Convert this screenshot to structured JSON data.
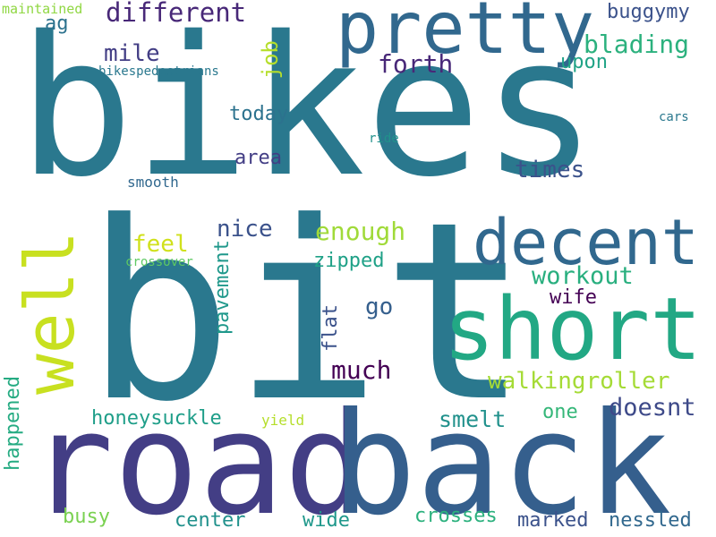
{
  "words": [
    {
      "text": "bikes",
      "color": "#2a788e"
    },
    {
      "text": "bit",
      "color": "#2a788e"
    },
    {
      "text": "road",
      "color": "#433e85"
    },
    {
      "text": "back",
      "color": "#355f8d"
    },
    {
      "text": "pretty",
      "color": "#31688e"
    },
    {
      "text": "short",
      "color": "#22a884"
    },
    {
      "text": "decent",
      "color": "#31688e"
    },
    {
      "text": "well",
      "color": "#c8e020"
    },
    {
      "text": "different",
      "color": "#482878"
    },
    {
      "text": "blading",
      "color": "#2cb17e"
    },
    {
      "text": "buggymy",
      "color": "#3b528b"
    },
    {
      "text": "forth",
      "color": "#482878"
    },
    {
      "text": "mile",
      "color": "#433e85"
    },
    {
      "text": "upon",
      "color": "#20a386"
    },
    {
      "text": "job",
      "color": "#b5de2b"
    },
    {
      "text": "ag",
      "color": "#2c728e"
    },
    {
      "text": "maintained",
      "color": "#90d743"
    },
    {
      "text": "bikespedestrians",
      "color": "#2a788e"
    },
    {
      "text": "today",
      "color": "#2c728e"
    },
    {
      "text": "cars",
      "color": "#2a788e"
    },
    {
      "text": "ride",
      "color": "#21918c"
    },
    {
      "text": "area",
      "color": "#433e85"
    },
    {
      "text": "times",
      "color": "#3b528b"
    },
    {
      "text": "smooth",
      "color": "#31688e"
    },
    {
      "text": "nice",
      "color": "#3b528b"
    },
    {
      "text": "enough",
      "color": "#a0da39"
    },
    {
      "text": "feel",
      "color": "#d0e11c"
    },
    {
      "text": "zipped",
      "color": "#1fa187"
    },
    {
      "text": "crossover",
      "color": "#5ec962"
    },
    {
      "text": "workout",
      "color": "#29af7f"
    },
    {
      "text": "wife",
      "color": "#440154"
    },
    {
      "text": "go",
      "color": "#355f8d"
    },
    {
      "text": "pavement",
      "color": "#1f988b"
    },
    {
      "text": "flat",
      "color": "#3b528b"
    },
    {
      "text": "much",
      "color": "#440154"
    },
    {
      "text": "walkingroller",
      "color": "#a5db36"
    },
    {
      "text": "doesnt",
      "color": "#3e4a89"
    },
    {
      "text": "honeysuckle",
      "color": "#1f9e89"
    },
    {
      "text": "smelt",
      "color": "#21918c"
    },
    {
      "text": "one",
      "color": "#35b779"
    },
    {
      "text": "yield",
      "color": "#b5de2b"
    },
    {
      "text": "happened",
      "color": "#25ab82"
    },
    {
      "text": "busy",
      "color": "#7ad151"
    },
    {
      "text": "center",
      "color": "#21918c"
    },
    {
      "text": "wide",
      "color": "#1f988b"
    },
    {
      "text": "crosses",
      "color": "#2cb17e"
    },
    {
      "text": "marked",
      "color": "#3b528b"
    },
    {
      "text": "nessled",
      "color": "#31688e"
    }
  ]
}
